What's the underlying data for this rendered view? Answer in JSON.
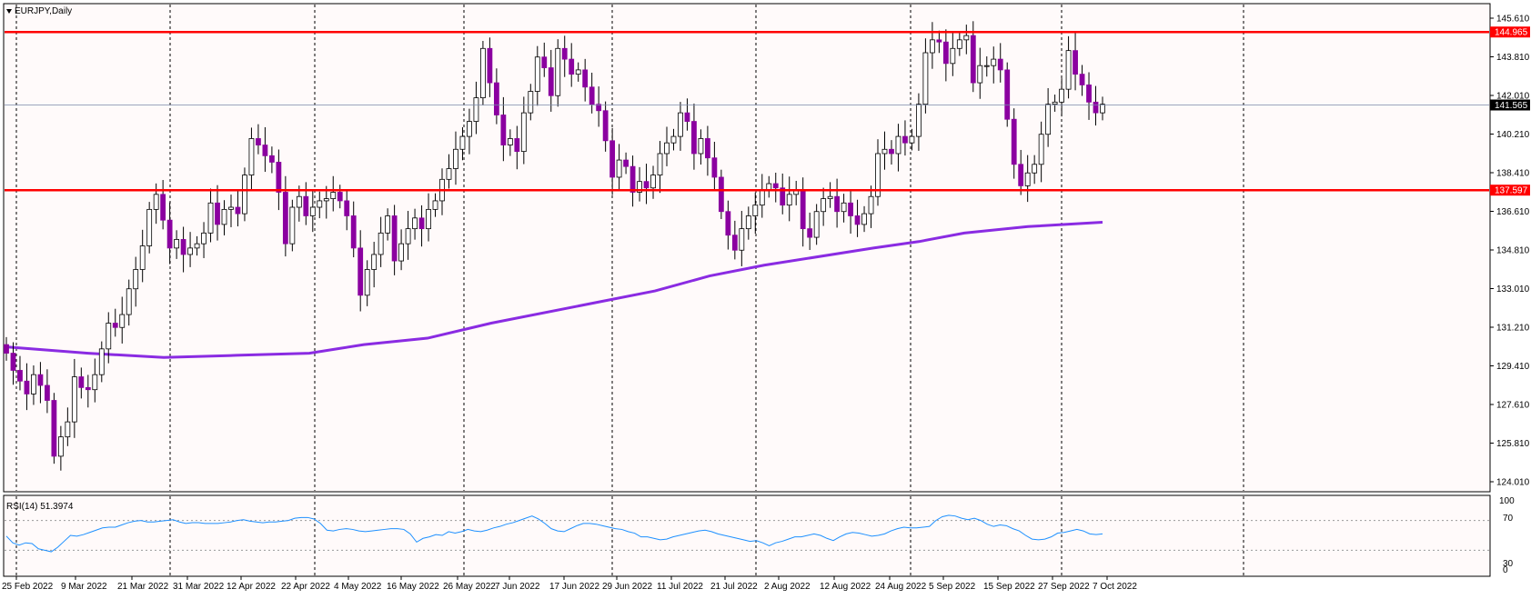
{
  "window": {
    "symbol_label": "EURJPY,Daily",
    "menu_icon": "triangle-down-icon"
  },
  "price_axis_labels": [
    "145.610",
    "143.810",
    "142.010",
    "140.210",
    "138.410",
    "136.610",
    "134.810",
    "133.010",
    "131.210",
    "129.410",
    "127.610",
    "125.810",
    "124.010"
  ],
  "time_axis_labels": [
    "25 Feb 2022",
    "9 Mar 2022",
    "21 Mar 2022",
    "31 Mar 2022",
    "12 Apr 2022",
    "22 Apr 2022",
    "4 May 2022",
    "16 May 2022",
    "26 May 2022",
    "7 Jun 2022",
    "17 Jun 2022",
    "29 Jun 2022",
    "11 Jul 2022",
    "21 Jul 2022",
    "2 Aug 2022",
    "12 Aug 2022",
    "24 Aug 2022",
    "5 Sep 2022",
    "15 Sep 2022",
    "27 Sep 2022",
    "7 Oct 2022"
  ],
  "rsi_panel": {
    "label": "RSI(14) 51.3974",
    "levels": [
      "100",
      "70",
      "30",
      "0"
    ]
  },
  "colors": {
    "bull_candle": "#ffffff",
    "bear_candle": "#8b00a0",
    "wick": "#000000",
    "resistance_line": "#ff0000",
    "ma_line": "#8a2be2",
    "rsi_line": "#1e90ff",
    "current_price_line": "#7a8aa8",
    "background": "#fffafa"
  },
  "chart_data": [
    {
      "type": "candlestick",
      "title": "EURJPY,Daily",
      "xlabel": "",
      "ylabel": "",
      "ylim": [
        124.01,
        146.3
      ],
      "grid": true,
      "categories": [
        "25 Feb 2022",
        "9 Mar 2022",
        "21 Mar 2022",
        "31 Mar 2022",
        "12 Apr 2022",
        "22 Apr 2022",
        "4 May 2022",
        "16 May 2022",
        "26 May 2022",
        "7 Jun 2022",
        "17 Jun 2022",
        "29 Jun 2022",
        "11 Jul 2022",
        "21 Jul 2022",
        "2 Aug 2022",
        "12 Aug 2022",
        "24 Aug 2022",
        "5 Sep 2022",
        "15 Sep 2022",
        "27 Sep 2022",
        "7 Oct 2022"
      ],
      "close": [
        130.0,
        129.2,
        128.7,
        128.1,
        129.0,
        128.5,
        127.8,
        125.2,
        126.1,
        126.8,
        128.9,
        128.4,
        128.3,
        129.0,
        130.2,
        131.4,
        131.2,
        131.8,
        133.0,
        133.9,
        135.0,
        136.7,
        137.4,
        136.2,
        134.9,
        135.3,
        134.6,
        134.9,
        135.1,
        135.6,
        137.0,
        136.0,
        136.7,
        136.8,
        136.5,
        138.3,
        140.0,
        139.7,
        139.2,
        138.9,
        137.5,
        135.1,
        136.8,
        137.3,
        136.4,
        136.8,
        137.1,
        137.2,
        137.5,
        137.1,
        136.4,
        134.9,
        132.7,
        133.9,
        134.6,
        135.6,
        136.4,
        134.3,
        135.1,
        135.8,
        136.3,
        135.8,
        136.7,
        137.1,
        138.1,
        138.6,
        139.5,
        140.1,
        140.8,
        141.9,
        144.2,
        142.6,
        141.1,
        139.7,
        140.0,
        139.4,
        141.2,
        142.2,
        143.8,
        143.3,
        142.0,
        144.2,
        143.7,
        143.0,
        143.2,
        142.4,
        141.6,
        141.3,
        139.9,
        138.2,
        139.0,
        138.7,
        137.5,
        138.0,
        137.7,
        138.3,
        139.3,
        139.8,
        140.1,
        141.2,
        140.8,
        139.3,
        140.0,
        139.1,
        138.2,
        136.6,
        135.5,
        134.8,
        135.8,
        136.4,
        136.9,
        137.6,
        137.9,
        137.7,
        136.9,
        137.4,
        137.6,
        135.8,
        135.4,
        136.6,
        137.2,
        137.3,
        136.6,
        137.0,
        136.4,
        136.0,
        136.5,
        137.3,
        139.3,
        139.5,
        139.3,
        140.1,
        139.8,
        140.1,
        141.6,
        144.0,
        144.6,
        144.5,
        143.5,
        144.2,
        144.6,
        144.8,
        142.6,
        143.4,
        143.4,
        143.7,
        143.2,
        140.9,
        138.8,
        137.8,
        138.4,
        138.8,
        140.2,
        141.6,
        141.7,
        142.3,
        144.1,
        143.0,
        142.5,
        141.7,
        141.2,
        141.6
      ],
      "sma_indicator": [
        130.3,
        130.0,
        129.8,
        129.9,
        130.0,
        130.4,
        130.7,
        131.4,
        132.4,
        132.9,
        133.6,
        134.1,
        134.9,
        135.2,
        135.6,
        135.9,
        136.1
      ],
      "sma_x": [
        "25 Feb 2022",
        "9 Mar 2022",
        "21 Mar 2022",
        "31 Mar 2022",
        "12 Apr 2022",
        "4 May 2022",
        "16 May 2022",
        "7 Jun 2022",
        "29 Jun 2022",
        "11 Jul 2022",
        "21 Jul 2022",
        "2 Aug 2022",
        "24 Aug 2022",
        "5 Sep 2022",
        "15 Sep 2022",
        "27 Sep 2022",
        "7 Oct 2022"
      ],
      "horizontal_levels": [
        144.965,
        137.597
      ],
      "current_price": 141.565
    },
    {
      "type": "line",
      "title": "RSI(14) 51.3974",
      "ylim": [
        0,
        100
      ],
      "levels": [
        70,
        30
      ],
      "values": [
        49,
        40,
        37,
        40,
        39,
        32,
        30,
        28,
        34,
        42,
        50,
        49,
        51,
        54,
        57,
        60,
        61,
        61,
        64,
        67,
        69,
        70,
        68,
        68,
        69,
        70,
        71,
        68,
        66,
        67,
        67,
        66,
        66,
        66,
        67,
        68,
        70,
        71,
        69,
        68,
        67,
        68,
        68,
        69,
        70,
        73,
        74,
        74,
        72,
        66,
        57,
        56,
        58,
        59,
        58,
        56,
        55,
        56,
        57,
        58,
        59,
        59,
        58,
        52,
        41,
        46,
        48,
        51,
        50,
        55,
        53,
        55,
        58,
        56,
        55,
        57,
        60,
        62,
        65,
        67,
        70,
        73,
        76,
        72,
        66,
        59,
        56,
        55,
        59,
        63,
        66,
        66,
        65,
        63,
        61,
        59,
        58,
        55,
        53,
        48,
        48,
        46,
        44,
        45,
        48,
        50,
        52,
        54,
        56,
        57,
        55,
        52,
        50,
        48,
        46,
        44,
        42,
        43,
        40,
        36,
        40,
        42,
        45,
        48,
        48,
        50,
        52,
        50,
        46,
        43,
        48,
        52,
        54,
        53,
        51,
        49,
        50,
        52,
        56,
        59,
        61,
        60,
        60,
        61,
        62,
        70,
        75,
        77,
        76,
        73,
        71,
        73,
        70,
        65,
        62,
        64,
        63,
        59,
        56,
        50,
        45,
        44,
        45,
        48,
        53,
        54,
        56,
        58,
        56,
        52,
        51,
        52
      ]
    }
  ]
}
